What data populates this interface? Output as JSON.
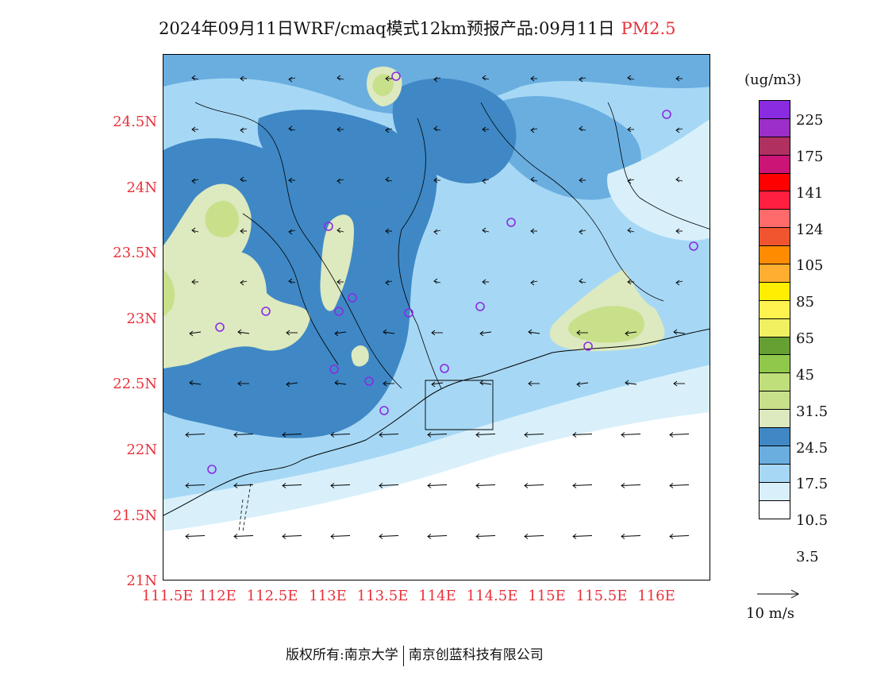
{
  "title": {
    "main": "2024年09月11日WRF/cmaq模式12km预报产品:09月11日",
    "pollutant": "PM2.5"
  },
  "axes": {
    "y_labels": [
      "24.5N",
      "24N",
      "23.5N",
      "23N",
      "22.5N",
      "22N",
      "21.5N",
      "21N"
    ],
    "x_labels": [
      "111.5E",
      "112E",
      "112.5E",
      "113E",
      "113.5E",
      "114E",
      "114.5E",
      "115E",
      "115.5E",
      "116E"
    ]
  },
  "legend": {
    "units": "(ug/m3)",
    "labels": [
      "225",
      "175",
      "141",
      "124",
      "105",
      "85",
      "65",
      "45",
      "31.5",
      "24.5",
      "17.5",
      "10.5",
      "3.5"
    ],
    "colors": [
      "#8a2be2",
      "#9b2fc8",
      "#b03060",
      "#cc1477",
      "#ff0000",
      "#ff2040",
      "#ff6a6a",
      "#f05530",
      "#ff8c00",
      "#ffae30",
      "#ffee00",
      "#fff44f",
      "#f0f060",
      "#66a033",
      "#8fc84a",
      "#bfdf7a",
      "#c8e08a",
      "#dde9bf",
      "#3f88c5",
      "#6aaee0",
      "#a6d8f5",
      "#d9f0fb",
      "#ffffff"
    ]
  },
  "vector_ref": {
    "label": "10 m/s"
  },
  "copyright": {
    "left": "版权所有:南京大学",
    "right": "南京创蓝科技有限公司"
  }
}
